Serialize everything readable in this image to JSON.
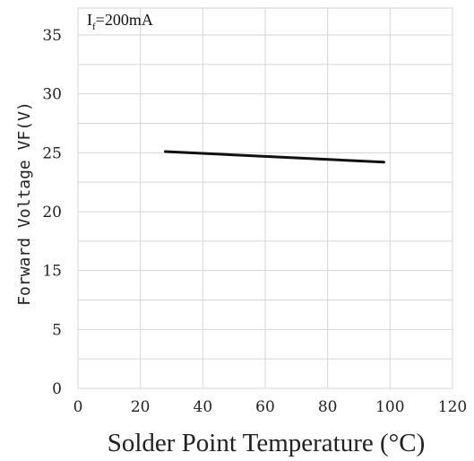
{
  "chart_data": {
    "type": "line",
    "annotation": {
      "main": "I",
      "sub": "f",
      "rest": "=200mA"
    },
    "xlabel": "Solder Point Temperature (°C)",
    "ylabel": "Forward Voltage VF(V)",
    "xlim": [
      0,
      120
    ],
    "x_ticks": [
      "0",
      "20",
      "40",
      "60",
      "80",
      "100",
      "120"
    ],
    "y_ticks": [
      "0",
      "5",
      "15",
      "20",
      "25",
      "30",
      "35"
    ],
    "grid": true,
    "series": [
      {
        "x": [
          28,
          98
        ],
        "y": [
          25.1,
          24.2
        ],
        "color": "#111111"
      }
    ]
  }
}
